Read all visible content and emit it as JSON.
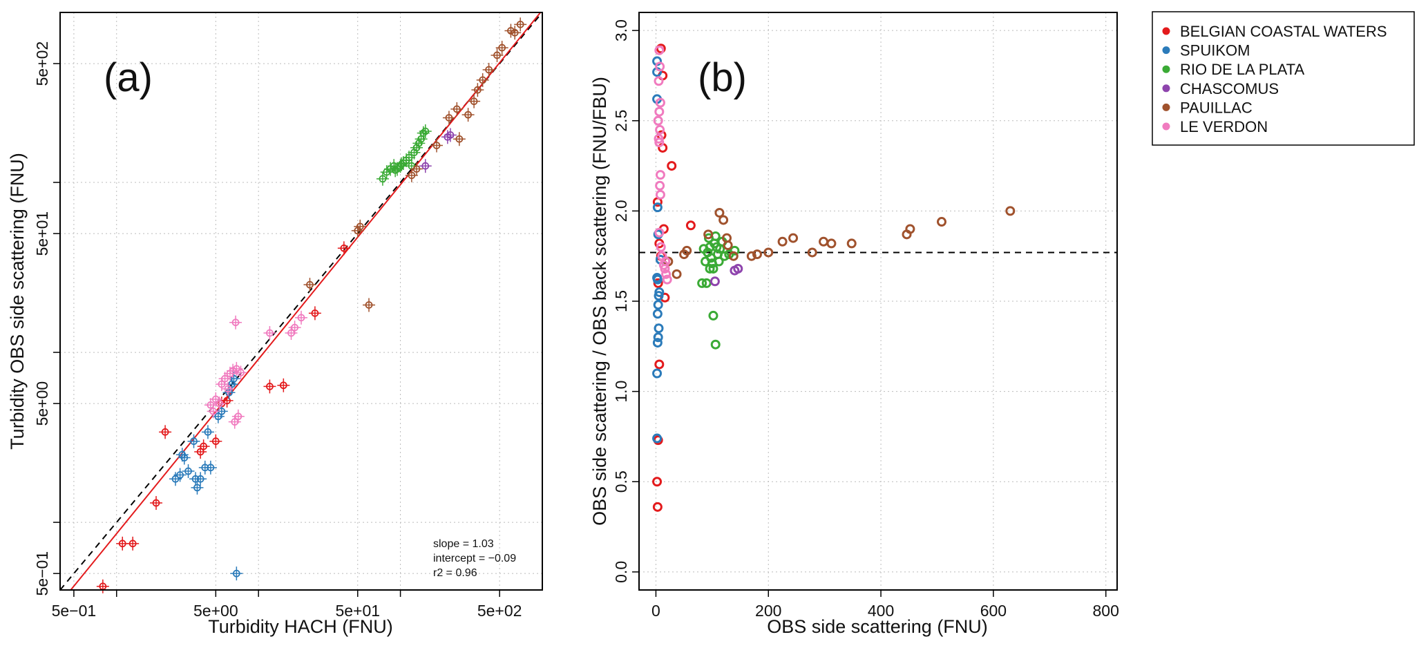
{
  "chart_data": [
    {
      "type": "scatter",
      "panel_label": "(a)",
      "xlabel": "Turbidity HACH (FNU)",
      "ylabel": "Turbidity OBS side scattering (FNU)",
      "scale": "log",
      "xlim": [
        0.4,
        1000
      ],
      "ylim": [
        0.4,
        1000
      ],
      "x_ticks": [
        "5e−01",
        "5e+00",
        "5e+01",
        "5e+02"
      ],
      "y_ticks": [
        "5e−01",
        "5e+00",
        "5e+01",
        "5e+02"
      ],
      "grid": true,
      "one_to_one_line": {
        "style": "dashed",
        "color": "#000000"
      },
      "fit": {
        "slope": 1.03,
        "intercept": -0.09,
        "color": "#e31a1c"
      },
      "stats_text": [
        "slope = 1.03",
        "intercept = −0.09",
        "r2 = 0.96"
      ],
      "series": [
        {
          "name": "BELGIAN COASTAL WATERS",
          "points": [
            [
              0.8,
              0.42
            ],
            [
              1.1,
              0.75
            ],
            [
              1.3,
              0.75
            ],
            [
              1.9,
              1.3
            ],
            [
              2.2,
              3.4
            ],
            [
              3.9,
              2.6
            ],
            [
              4.1,
              2.8
            ],
            [
              5.0,
              3.0
            ],
            [
              5.5,
              5.0
            ],
            [
              12,
              6.3
            ],
            [
              15,
              6.4
            ],
            [
              25,
              17
            ],
            [
              40,
              41
            ],
            [
              6,
              5.2
            ]
          ]
        },
        {
          "name": "SPUIKOM",
          "points": [
            [
              2.6,
              1.8
            ],
            [
              2.8,
              1.9
            ],
            [
              3.0,
              2.4
            ],
            [
              3.2,
              2.0
            ],
            [
              3.5,
              3.0
            ],
            [
              3.6,
              1.8
            ],
            [
              3.7,
              1.6
            ],
            [
              3.9,
              1.8
            ],
            [
              4.2,
              2.1
            ],
            [
              4.4,
              3.4
            ],
            [
              4.6,
              2.1
            ],
            [
              5.2,
              4.2
            ],
            [
              5.5,
              4.5
            ],
            [
              6.2,
              5.8
            ],
            [
              6.5,
              6.5
            ],
            [
              6.7,
              7.0
            ],
            [
              7.0,
              0.5
            ],
            [
              2.9,
              2.5
            ]
          ]
        },
        {
          "name": "RIO DE LA PLATA",
          "points": [
            [
              75,
              105
            ],
            [
              80,
              115
            ],
            [
              85,
              120
            ],
            [
              90,
              125
            ],
            [
              95,
              120
            ],
            [
              100,
              125
            ],
            [
              105,
              130
            ],
            [
              110,
              135
            ],
            [
              115,
              140
            ],
            [
              120,
              125
            ],
            [
              125,
              150
            ],
            [
              130,
              160
            ],
            [
              135,
              170
            ],
            [
              140,
              180
            ],
            [
              145,
              195
            ],
            [
              150,
              200
            ],
            [
              92,
              118
            ],
            [
              102,
              128
            ]
          ]
        },
        {
          "name": "CHASCOMUS",
          "points": [
            [
              150,
              125
            ],
            [
              215,
              185
            ],
            [
              225,
              190
            ]
          ]
        },
        {
          "name": "PAUILLAC",
          "points": [
            [
              23,
              25
            ],
            [
              50,
              52
            ],
            [
              52,
              55
            ],
            [
              60,
              19
            ],
            [
              120,
              110
            ],
            [
              130,
              120
            ],
            [
              180,
              165
            ],
            [
              220,
              240
            ],
            [
              250,
              270
            ],
            [
              260,
              180
            ],
            [
              300,
              250
            ],
            [
              330,
              300
            ],
            [
              350,
              350
            ],
            [
              380,
              400
            ],
            [
              420,
              460
            ],
            [
              480,
              560
            ],
            [
              520,
              620
            ],
            [
              600,
              780
            ],
            [
              640,
              760
            ],
            [
              700,
              850
            ]
          ]
        },
        {
          "name": "LE VERDON",
          "points": [
            [
              4.6,
              4.9
            ],
            [
              4.8,
              4.5
            ],
            [
              5.0,
              5.3
            ],
            [
              5.3,
              5.0
            ],
            [
              5.5,
              6.5
            ],
            [
              5.8,
              7.0
            ],
            [
              6.1,
              6.1
            ],
            [
              6.3,
              7.5
            ],
            [
              6.6,
              7.8
            ],
            [
              7.0,
              8.0
            ],
            [
              7.2,
              4.2
            ],
            [
              7.5,
              7.6
            ],
            [
              6.8,
              3.9
            ],
            [
              12,
              13
            ],
            [
              18,
              14
            ],
            [
              20,
              16
            ],
            [
              6.9,
              15
            ],
            [
              17,
              13
            ]
          ]
        }
      ]
    },
    {
      "type": "scatter",
      "panel_label": "(b)",
      "xlabel": "OBS side scattering (FNU)",
      "ylabel": "OBS side scattering / OBS back scattering (FNU/FBU)",
      "xlim": [
        -30,
        820
      ],
      "ylim": [
        -0.1,
        3.1
      ],
      "x_ticks": [
        0,
        200,
        400,
        600,
        800
      ],
      "y_ticks": [
        0.0,
        0.5,
        1.0,
        1.5,
        2.0,
        2.5,
        3.0
      ],
      "grid": true,
      "hline": {
        "y": 1.77,
        "style": "dashed"
      },
      "series": [
        {
          "name": "BELGIAN COASTAL WATERS",
          "points": [
            [
              3,
              0.36
            ],
            [
              2,
              0.5
            ],
            [
              4,
              0.73
            ],
            [
              6,
              1.15
            ],
            [
              9,
              2.9
            ],
            [
              12,
              2.75
            ],
            [
              10,
              2.42
            ],
            [
              12,
              2.35
            ],
            [
              14,
              1.9
            ],
            [
              16,
              1.52
            ],
            [
              28,
              2.25
            ],
            [
              62,
              1.92
            ],
            [
              4,
              1.6
            ],
            [
              6,
              1.82
            ],
            [
              3,
              2.05
            ],
            [
              9,
              1.75
            ]
          ]
        },
        {
          "name": "SPUIKOM",
          "points": [
            [
              2,
              0.74
            ],
            [
              2,
              1.1
            ],
            [
              3,
              1.27
            ],
            [
              4,
              1.3
            ],
            [
              5,
              1.35
            ],
            [
              3,
              1.43
            ],
            [
              4,
              1.48
            ],
            [
              5,
              1.53
            ],
            [
              6,
              1.55
            ],
            [
              3,
              1.62
            ],
            [
              2,
              1.63
            ],
            [
              4,
              1.87
            ],
            [
              3,
              2.02
            ],
            [
              2,
              2.62
            ],
            [
              2,
              2.83
            ],
            [
              2,
              2.77
            ],
            [
              8,
              1.73
            ]
          ]
        },
        {
          "name": "RIO DE LA PLATA",
          "points": [
            [
              82,
              1.6
            ],
            [
              88,
              1.72
            ],
            [
              92,
              1.77
            ],
            [
              96,
              1.8
            ],
            [
              98,
              1.74
            ],
            [
              100,
              1.71
            ],
            [
              102,
              1.68
            ],
            [
              104,
              1.82
            ],
            [
              106,
              1.86
            ],
            [
              108,
              1.8
            ],
            [
              110,
              1.76
            ],
            [
              112,
              1.72
            ],
            [
              114,
              1.79
            ],
            [
              118,
              1.83
            ],
            [
              122,
              1.75
            ],
            [
              85,
              1.79
            ],
            [
              90,
              1.6
            ],
            [
              102,
              1.42
            ],
            [
              106,
              1.26
            ],
            [
              94,
              1.85
            ],
            [
              130,
              1.76
            ],
            [
              140,
              1.78
            ],
            [
              96,
              1.68
            ]
          ]
        },
        {
          "name": "CHASCOMUS",
          "points": [
            [
              105,
              1.61
            ],
            [
              140,
              1.67
            ],
            [
              146,
              1.68
            ]
          ]
        },
        {
          "name": "PAUILLAC",
          "points": [
            [
              22,
              1.72
            ],
            [
              37,
              1.65
            ],
            [
              50,
              1.76
            ],
            [
              55,
              1.78
            ],
            [
              93,
              1.87
            ],
            [
              113,
              1.99
            ],
            [
              120,
              1.95
            ],
            [
              126,
              1.85
            ],
            [
              128,
              1.81
            ],
            [
              138,
              1.75
            ],
            [
              170,
              1.75
            ],
            [
              180,
              1.76
            ],
            [
              200,
              1.77
            ],
            [
              225,
              1.83
            ],
            [
              244,
              1.85
            ],
            [
              278,
              1.77
            ],
            [
              298,
              1.83
            ],
            [
              312,
              1.82
            ],
            [
              348,
              1.82
            ],
            [
              446,
              1.87
            ],
            [
              452,
              1.9
            ],
            [
              508,
              1.94
            ],
            [
              630,
              2.0
            ]
          ]
        },
        {
          "name": "LE VERDON",
          "points": [
            [
              6,
              2.89
            ],
            [
              7,
              2.8
            ],
            [
              5,
              2.72
            ],
            [
              8,
              2.6
            ],
            [
              6,
              2.55
            ],
            [
              4,
              2.5
            ],
            [
              7,
              2.45
            ],
            [
              5,
              2.4
            ],
            [
              6,
              2.38
            ],
            [
              8,
              2.2
            ],
            [
              7,
              2.14
            ],
            [
              8,
              2.09
            ],
            [
              6,
              1.88
            ],
            [
              9,
              1.8
            ],
            [
              11,
              1.75
            ],
            [
              14,
              1.7
            ],
            [
              16,
              1.68
            ],
            [
              18,
              1.65
            ],
            [
              20,
              1.62
            ],
            [
              17,
              1.72
            ]
          ]
        }
      ]
    }
  ],
  "legend": {
    "position": "top-right",
    "items": [
      {
        "label": "BELGIAN COASTAL WATERS",
        "color": "#e31a1c"
      },
      {
        "label": "SPUIKOM",
        "color": "#2b7bba"
      },
      {
        "label": "RIO DE LA PLATA",
        "color": "#3aaa35"
      },
      {
        "label": "CHASCOMUS",
        "color": "#8e44ad"
      },
      {
        "label": "PAUILLAC",
        "color": "#a0522d"
      },
      {
        "label": "LE VERDON",
        "color": "#f07bbf"
      }
    ]
  }
}
